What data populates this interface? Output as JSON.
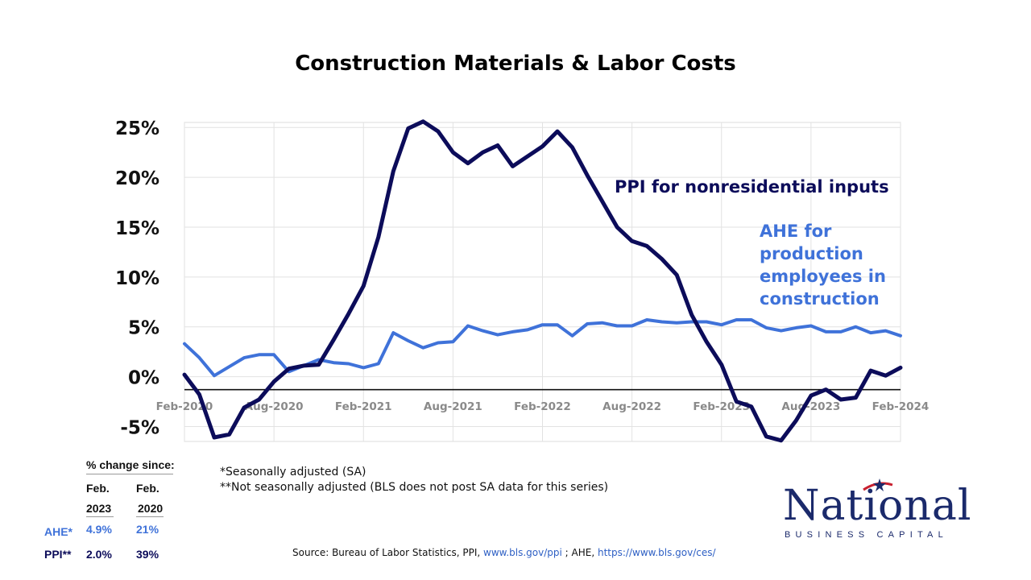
{
  "title": "Construction Materials & Labor Costs",
  "chart_data": {
    "type": "line",
    "title": "Construction Materials & Labor Costs",
    "x_tick_labels": [
      "Feb-2020",
      "Aug-2020",
      "Feb-2021",
      "Aug-2021",
      "Feb-2022",
      "Aug-2022",
      "Feb-2023",
      "Aug-2023",
      "Feb-2024"
    ],
    "y_tick_labels": [
      "25%",
      "20%",
      "15%",
      "10%",
      "5%",
      "0%",
      "-5%"
    ],
    "ylim": [
      -6.5,
      25.5
    ],
    "grid": true,
    "x_start": "2020-02",
    "x_end": "2024-02",
    "series": [
      {
        "name": "PPI for nonresidential inputs",
        "color": "#0c0c5a",
        "values": [
          0.2,
          -1.8,
          -6.1,
          -5.8,
          -3.1,
          -2.3,
          -0.5,
          0.8,
          1.1,
          1.2,
          3.7,
          6.3,
          9.1,
          14.0,
          20.6,
          24.9,
          25.6,
          24.6,
          22.5,
          21.4,
          22.5,
          23.2,
          21.1,
          22.1,
          23.1,
          24.6,
          23.0,
          20.2,
          17.6,
          15.0,
          13.6,
          13.1,
          11.8,
          10.2,
          6.2,
          3.5,
          1.2,
          -2.5,
          -3.0,
          -6.0,
          -6.4,
          -4.4,
          -1.9,
          -1.3,
          -2.3,
          -2.1,
          0.6,
          0.1,
          0.9
        ]
      },
      {
        "name": "AHE for production employees in construction",
        "color": "#3f72d9",
        "values": [
          3.3,
          1.9,
          0.1,
          1.0,
          1.9,
          2.2,
          2.2,
          0.5,
          1.1,
          1.7,
          1.4,
          1.3,
          0.9,
          1.3,
          4.4,
          3.6,
          2.9,
          3.4,
          3.5,
          5.1,
          4.6,
          4.2,
          4.5,
          4.7,
          5.2,
          5.2,
          4.1,
          5.3,
          5.4,
          5.1,
          5.1,
          5.7,
          5.5,
          5.4,
          5.5,
          5.5,
          5.2,
          5.7,
          5.7,
          4.9,
          4.6,
          4.9,
          5.1,
          4.5,
          4.5,
          5.0,
          4.4,
          4.6,
          4.1
        ]
      }
    ],
    "annotations": [
      "PPI for nonresidential inputs",
      "AHE for production employees in construction"
    ]
  },
  "pct_table": {
    "header": "% change since:",
    "col1_line1": "Feb.",
    "col1_line2": "2023",
    "col2_line1": "Feb.",
    "col2_line2": "2020",
    "rows": [
      {
        "label": "AHE*",
        "v1": "4.9%",
        "v2": "21%"
      },
      {
        "label": "PPI**",
        "v1": "2.0%",
        "v2": "39%"
      }
    ]
  },
  "notes": {
    "line1": "*Seasonally adjusted (SA)",
    "line2": "**Not seasonally adjusted (BLS does not post SA data for this series)"
  },
  "source": {
    "prefix": "Source: Bureau of Labor Statistics, PPI, ",
    "link1": "www.bls.gov/ppi",
    "middle": " ; AHE, ",
    "link2": "https://www.bls.gov/ces/"
  },
  "logo": {
    "word": "National",
    "sub": "BUSINESS CAPITAL",
    "colors": {
      "navy": "#1b2a6b",
      "red": "#c8202f"
    }
  }
}
